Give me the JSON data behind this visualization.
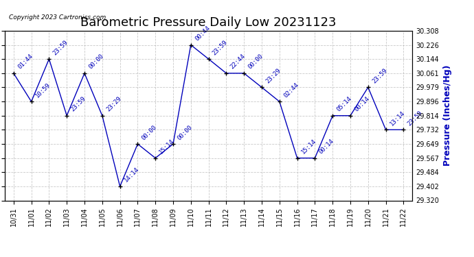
{
  "title": "Barometric Pressure Daily Low 20231123",
  "ylabel": "Pressure (Inches/Hg)",
  "copyright": "Copyright 2023 Cartronics.com",
  "line_color": "#0000bb",
  "marker_color": "#000000",
  "background_color": "#ffffff",
  "grid_color": "#bbbbbb",
  "ylim": [
    29.32,
    30.308
  ],
  "yticks": [
    29.32,
    29.402,
    29.484,
    29.567,
    29.649,
    29.732,
    29.814,
    29.896,
    29.979,
    30.061,
    30.144,
    30.226,
    30.308
  ],
  "dates": [
    "10/31",
    "11/01",
    "11/02",
    "11/03",
    "11/04",
    "11/05",
    "11/06",
    "11/07",
    "11/08",
    "11/09",
    "11/10",
    "11/11",
    "11/12",
    "11/13",
    "11/14",
    "11/15",
    "11/16",
    "11/17",
    "11/18",
    "11/19",
    "11/20",
    "11/21",
    "11/22"
  ],
  "values": [
    30.061,
    29.896,
    30.144,
    29.814,
    30.061,
    29.814,
    29.402,
    29.649,
    29.567,
    29.649,
    30.226,
    30.144,
    30.061,
    30.061,
    29.979,
    29.896,
    29.567,
    29.567,
    29.814,
    29.814,
    29.979,
    29.732,
    29.732
  ],
  "annotations": [
    "01:44",
    "10:59",
    "23:59",
    "23:59",
    "00:00",
    "23:29",
    "14:14",
    "00:00",
    "15:14",
    "00:00",
    "00:44",
    "23:59",
    "22:44",
    "00:00",
    "23:29",
    "02:44",
    "15:14",
    "00:14",
    "05:14",
    "00:14",
    "23:59",
    "13:14",
    "23:59"
  ],
  "title_fontsize": 13,
  "label_fontsize": 8,
  "tick_fontsize": 7,
  "annotation_fontsize": 6.5,
  "ylabel_fontsize": 9
}
